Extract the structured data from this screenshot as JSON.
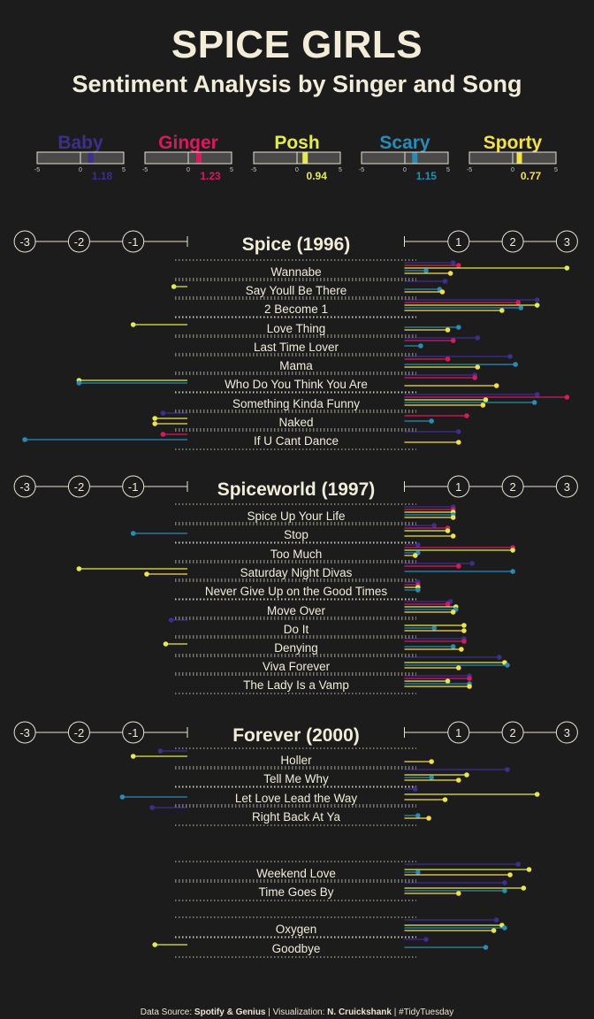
{
  "title": "SPICE GIRLS",
  "subtitle": "Sentiment Analysis by Singer and Song",
  "caption": {
    "prefix": "Data Source: ",
    "source": "Spotify & Genius",
    "mid": " | Visualization: ",
    "author": "N. Cruickshank",
    "suffix": " | #TidyTuesday"
  },
  "colors": {
    "background": "#1c1c1c",
    "text": "#f2ecd9",
    "Baby": "#3b2f8f",
    "Ginger": "#d51b5f",
    "Posh": "#e6ea52",
    "Scary": "#2a8cb5",
    "Sporty": "#f4e04d"
  },
  "chart_data": [
    {
      "type": "bar",
      "title": "",
      "xlim": [
        -5,
        5
      ],
      "ticks": [
        "-5",
        "0",
        "5"
      ],
      "categories": [
        "Baby",
        "Ginger",
        "Posh",
        "Scary",
        "Sporty"
      ],
      "values": [
        1.18,
        1.23,
        0.94,
        1.15,
        0.77
      ],
      "value_labels": [
        "1.18",
        "1.23",
        "0.94",
        "1.15",
        "0.77"
      ]
    },
    {
      "type": "bar",
      "orientation": "horizontal",
      "xlim": [
        -3,
        3
      ],
      "axis_ticks": [
        "-3",
        "-2",
        "-1",
        "1",
        "2",
        "3"
      ],
      "grid": false,
      "series_names": [
        "Baby",
        "Ginger",
        "Posh",
        "Scary",
        "Sporty"
      ],
      "albums": [
        {
          "title": "Spice (1996)",
          "songs": [
            {
              "name": "Wannabe",
              "values": [
                0.9,
                1.0,
                3.0,
                0.4,
                0.85
              ]
            },
            {
              "name": "Say Youll Be There",
              "values": [
                0.75,
                null,
                -0.25,
                0.65,
                0.7
              ]
            },
            {
              "name": "2 Become 1",
              "values": [
                2.45,
                2.1,
                2.45,
                2.15,
                1.8
              ]
            },
            {
              "name": "Love Thing",
              "values": [
                null,
                null,
                -1.0,
                1.0,
                0.8
              ]
            },
            {
              "name": "Last Time Lover",
              "values": [
                1.35,
                0.9,
                null,
                0.3,
                null
              ]
            },
            {
              "name": "Mama",
              "values": [
                1.95,
                0.8,
                null,
                2.05,
                1.35
              ]
            },
            {
              "name": "Who Do You Think You Are",
              "values": [
                1.3,
                1.3,
                -2.0,
                -2.0,
                1.7
              ]
            },
            {
              "name": "Something Kinda Funny",
              "values": [
                2.45,
                3.0,
                1.5,
                2.4,
                1.45
              ]
            },
            {
              "name": "Naked",
              "values": [
                -0.45,
                1.15,
                -0.6,
                0.5,
                -0.6
              ]
            },
            {
              "name": "If U Cant Dance",
              "values": [
                1.0,
                -0.45,
                null,
                -3.0,
                1.0
              ]
            }
          ]
        },
        {
          "title": "Spiceworld (1997)",
          "songs": [
            {
              "name": "Spice Up Your Life",
              "values": [
                0.9,
                0.9,
                0.9,
                0.9,
                0.9
              ]
            },
            {
              "name": "Stop",
              "values": [
                0.55,
                0.8,
                0.8,
                -1.0,
                0.9
              ]
            },
            {
              "name": "Too Much",
              "values": [
                0.25,
                2.0,
                2.0,
                0.25,
                0.2
              ]
            },
            {
              "name": "Saturday Night Divas",
              "values": [
                1.25,
                1.0,
                -2.0,
                2.0,
                -0.75
              ]
            },
            {
              "name": "Never Give Up on the Good Times",
              "values": [
                0.25,
                0.25,
                0.25,
                0.25,
                null
              ]
            },
            {
              "name": "Move Over",
              "values": [
                0.85,
                0.8,
                0.95,
                0.95,
                0.9
              ]
            },
            {
              "name": "Do It",
              "values": [
                -0.3,
                null,
                1.1,
                0.55,
                1.1
              ]
            },
            {
              "name": "Denying",
              "values": [
                1.1,
                1.1,
                -0.4,
                0.9,
                1.05
              ]
            },
            {
              "name": "Viva Forever",
              "values": [
                1.75,
                null,
                1.85,
                1.9,
                1.0
              ]
            },
            {
              "name": "The Lady Is a Vamp",
              "values": [
                1.2,
                1.2,
                0.8,
                1.2,
                1.2
              ]
            }
          ]
        },
        {
          "title": "Forever (2000)",
          "songs": [
            {
              "name": "Holler",
              "values": [
                -0.5,
                null,
                -1.0,
                null,
                0.5
              ]
            },
            {
              "name": "Tell Me Why",
              "values": [
                1.9,
                null,
                1.15,
                0.5,
                1.0
              ]
            },
            {
              "name": "Let Love Lead the Way",
              "values": [
                0.2,
                null,
                2.45,
                -1.2,
                0.75
              ]
            },
            {
              "name": "Right Back At Ya",
              "values": [
                -0.65,
                null,
                null,
                0.25,
                0.45
              ]
            },
            {
              "name": "Weekend Love",
              "values": [
                2.1,
                null,
                2.3,
                0.25,
                1.95
              ]
            },
            {
              "name": "Time Goes By",
              "values": [
                1.85,
                null,
                2.2,
                1.85,
                1.0
              ]
            },
            {
              "name": "Oxygen",
              "values": [
                1.7,
                null,
                1.8,
                1.85,
                1.65
              ]
            },
            {
              "name": "Goodbye",
              "values": [
                0.4,
                null,
                -0.6,
                1.5,
                null
              ]
            }
          ]
        }
      ]
    }
  ]
}
